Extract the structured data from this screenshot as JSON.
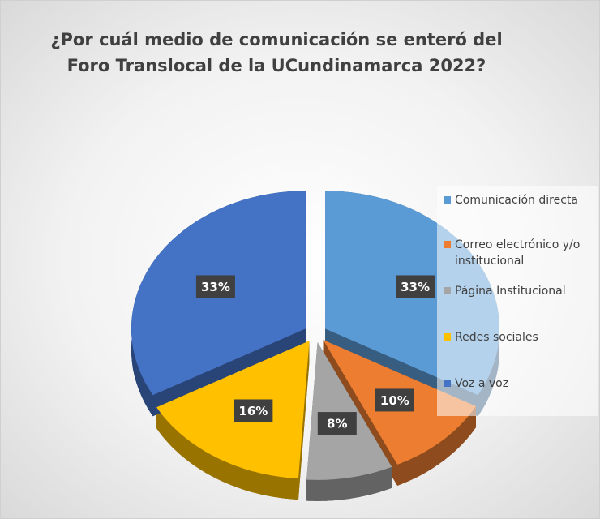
{
  "chart_data": {
    "type": "pie",
    "title": "¿Por cuál medio de comunicación se enteró del Foro Translocal de la UCundinamarca 2022?",
    "categories": [
      "Comunicación directa",
      "Correo electrónico y/o institucional",
      "Página Institucional",
      "Redes sociales",
      "Voz a voz"
    ],
    "values": [
      33,
      10,
      8,
      16,
      33
    ],
    "value_labels": [
      "33%",
      "10%",
      "8%",
      "16%",
      "33%"
    ],
    "colors": [
      "#5b9bd5",
      "#ed7d31",
      "#a5a5a5",
      "#ffc000",
      "#4472c4"
    ],
    "legend": "right"
  }
}
